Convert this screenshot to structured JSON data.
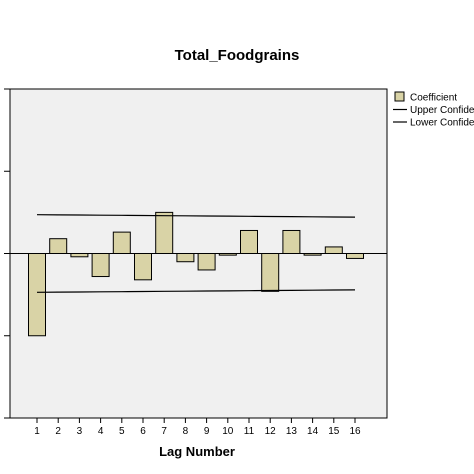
{
  "chart_data": {
    "type": "bar",
    "title": "Total_Foodgrains",
    "xlabel": "Lag Number",
    "ylabel": "",
    "categories": [
      "1",
      "2",
      "3",
      "4",
      "5",
      "6",
      "7",
      "8",
      "9",
      "10",
      "11",
      "12",
      "13",
      "14",
      "15",
      "16"
    ],
    "ylim": [
      -1.0,
      1.0
    ],
    "y_ticks_labeled": false,
    "series": [
      {
        "name": "Coefficient",
        "kind": "bar",
        "values": [
          -0.5,
          0.09,
          -0.02,
          -0.14,
          0.13,
          -0.16,
          0.25,
          -0.05,
          -0.1,
          -0.01,
          0.14,
          -0.23,
          0.14,
          -0.01,
          0.04,
          -0.03
        ]
      },
      {
        "name": "Upper Confidence Limit",
        "kind": "line",
        "values": [
          0.236,
          0.235,
          0.234,
          0.233,
          0.232,
          0.231,
          0.23,
          0.229,
          0.228,
          0.227,
          0.226,
          0.225,
          0.224,
          0.223,
          0.222,
          0.221
        ]
      },
      {
        "name": "Lower Confidence Limit",
        "kind": "line",
        "values": [
          -0.236,
          -0.235,
          -0.234,
          -0.233,
          -0.232,
          -0.231,
          -0.23,
          -0.229,
          -0.228,
          -0.227,
          -0.226,
          -0.225,
          -0.224,
          -0.223,
          -0.222,
          -0.221
        ]
      }
    ],
    "legend": {
      "placement": "top-right",
      "labels": [
        "Coefficient",
        "Upper Confide",
        "Lower Confide"
      ]
    },
    "grid": false,
    "colors": {
      "bar_fill": "#d9d3a6",
      "bar_stroke": "#000000",
      "plot_background": "#f0f0f0",
      "line": "#000000"
    }
  }
}
